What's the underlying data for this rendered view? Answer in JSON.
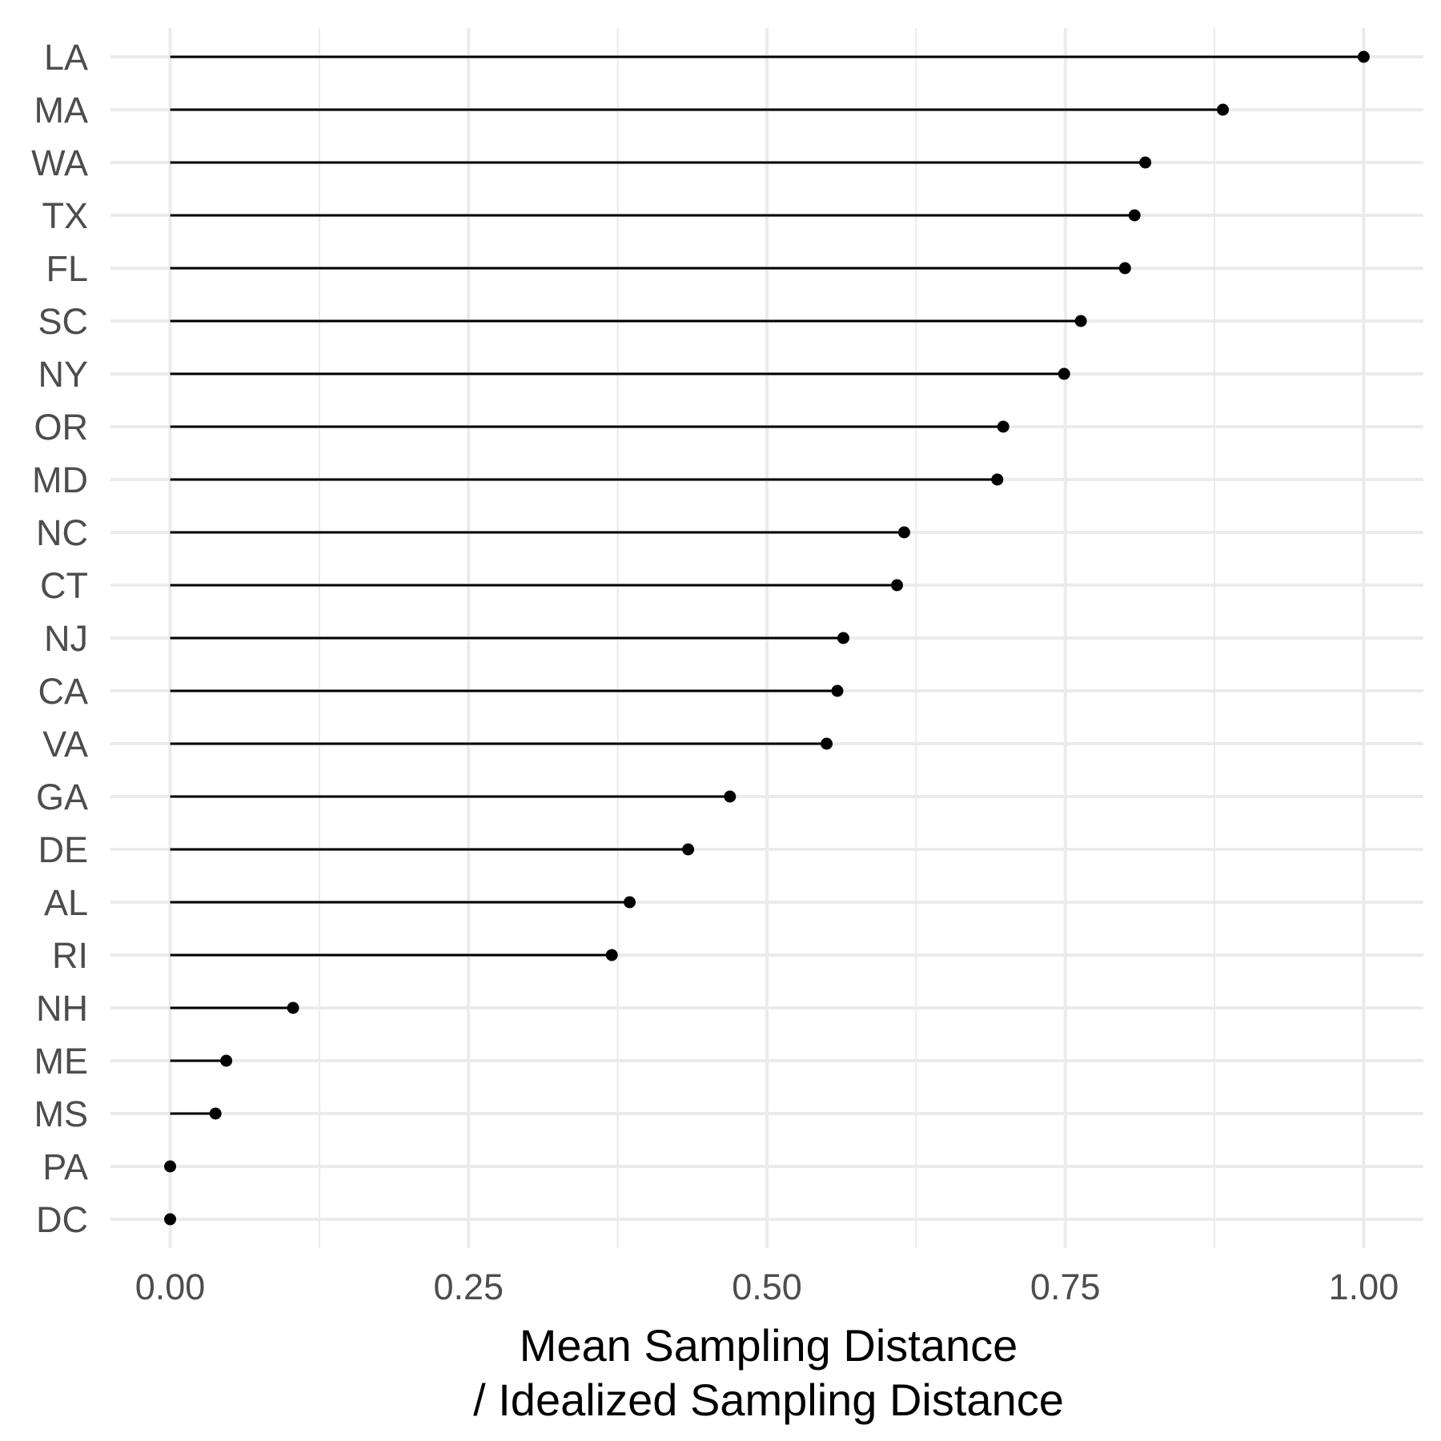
{
  "chart_data": {
    "type": "lollipop",
    "xlabel_lines": [
      "Mean Sampling Distance",
      "/ Idealized Sampling Distance"
    ],
    "ylabel": "",
    "xlim": [
      -0.05,
      1.05
    ],
    "x_ticks": [
      0.0,
      0.25,
      0.5,
      0.75,
      1.0
    ],
    "x_tick_labels": [
      "0.00",
      "0.25",
      "0.50",
      "0.75",
      "1.00"
    ],
    "x_minor_ticks": [
      0.125,
      0.375,
      0.625,
      0.875
    ],
    "grid": true,
    "legend": "none",
    "categories": [
      "LA",
      "MA",
      "WA",
      "TX",
      "FL",
      "SC",
      "NY",
      "OR",
      "MD",
      "NC",
      "CT",
      "NJ",
      "CA",
      "VA",
      "GA",
      "DE",
      "AL",
      "RI",
      "NH",
      "ME",
      "MS",
      "PA",
      "DC"
    ],
    "values": [
      1.0,
      0.882,
      0.817,
      0.808,
      0.8,
      0.763,
      0.749,
      0.698,
      0.693,
      0.615,
      0.609,
      0.564,
      0.559,
      0.55,
      0.469,
      0.434,
      0.385,
      0.37,
      0.103,
      0.047,
      0.038,
      0.0,
      0.0
    ],
    "colors": {
      "stem": "#000000",
      "point": "#000000",
      "grid_major": "#ebebeb",
      "grid_minor": "#ebebeb",
      "tick_text": "#4d4d4d",
      "title_text": "#000000"
    }
  }
}
